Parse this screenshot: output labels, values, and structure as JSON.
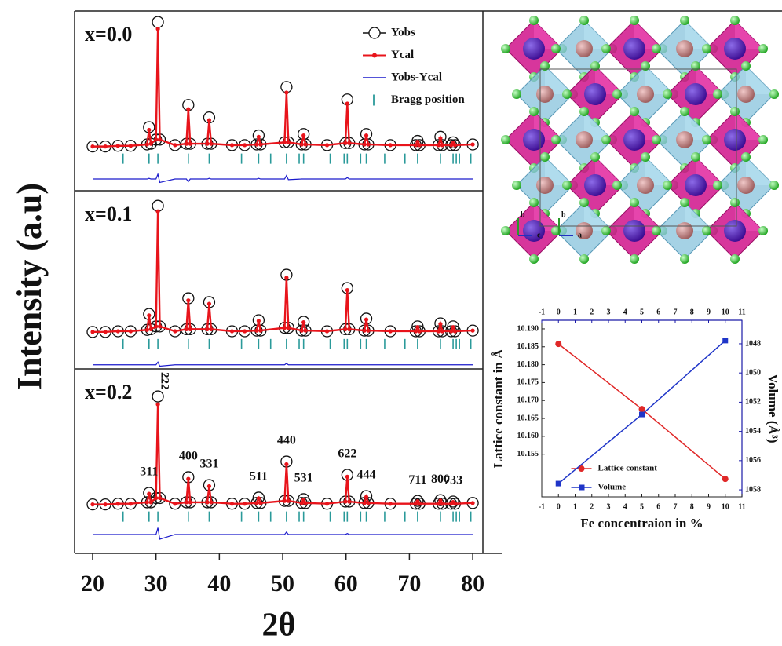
{
  "chart_data": [
    {
      "type": "line",
      "xlabel": "2θ",
      "ylabel": "Intensity (a.u)",
      "xlim": [
        17.15,
        81.6
      ],
      "xticks": [
        20,
        30,
        40,
        50,
        60,
        70,
        80
      ],
      "panels": [
        {
          "label": "x=0.0",
          "ylim": [
            -25,
            105
          ],
          "legend": "upper right",
          "x": [
            20,
            22,
            24,
            26,
            28.6,
            28.9,
            29.2,
            30.0,
            30.3,
            30.6,
            33,
            34.8,
            35.1,
            35.4,
            38.1,
            38.4,
            38.7,
            42,
            44,
            45.9,
            46.2,
            46.5,
            50.3,
            50.6,
            50.9,
            53.0,
            53.3,
            53.6,
            57,
            59.9,
            60.2,
            60.5,
            62.9,
            63.2,
            63.5,
            67,
            71.0,
            71.3,
            71.6,
            74.6,
            74.9,
            75.2,
            76.6,
            76.9,
            77.2,
            80
          ],
          "series": [
            {
              "name": "Yobs",
              "color": "#111111",
              "marker": "circle",
              "values": [
                7,
                7,
                7.5,
                7.5,
                8.5,
                21,
                9,
                12,
                97,
                12,
                8,
                9,
                37,
                9,
                9,
                28,
                9,
                8,
                8,
                8.5,
                15,
                8.5,
                10,
                50,
                10,
                8.5,
                16,
                8.5,
                8,
                9.5,
                41,
                9.5,
                8.5,
                16,
                8.5,
                8,
                8,
                11,
                8,
                8,
                14,
                8,
                8,
                10,
                8,
                8.5
              ]
            },
            {
              "name": "Ycal",
              "color": "#e8141b",
              "marker": "dot",
              "values": [
                7,
                7,
                7.5,
                7.5,
                8.5,
                19,
                9,
                12,
                92,
                12,
                8,
                9,
                34,
                9,
                9,
                26,
                9,
                8,
                8,
                8.5,
                14,
                8.5,
                10,
                46,
                10,
                8.5,
                15,
                8.5,
                8,
                9.5,
                38,
                9.5,
                8.5,
                15,
                8.5,
                8,
                8,
                10.5,
                8,
                8,
                13,
                8,
                8,
                9.5,
                8,
                8.5
              ]
            },
            {
              "name": "Yobs-Ycal",
              "color": "#1a1acc",
              "marker": "line",
              "values": [
                -16.5,
                -16.5,
                -16.5,
                -16.5,
                -16.5,
                -16,
                -16.5,
                -16.5,
                -13,
                -19,
                -16.5,
                -16.5,
                -18.5,
                -16.5,
                -16.5,
                -16,
                -16.5,
                -16.5,
                -16.5,
                -16.5,
                -16,
                -16.5,
                -16.5,
                -14,
                -17,
                -16.5,
                -16.5,
                -16.5,
                -16.5,
                -16.5,
                -15.5,
                -16.5,
                -16.5,
                -16.5,
                -16.5,
                -16.5,
                -16.5,
                -16.5,
                -16.5,
                -16.5,
                -16.5,
                -16.5,
                -16.5,
                -16.5,
                -16.5,
                -16.5
              ]
            },
            {
              "name": "Bragg position",
              "color": "#2a9a9a",
              "marker": "tick",
              "x": [
                24.8,
                28.9,
                30.3,
                35.1,
                38.4,
                43.5,
                46.2,
                48.1,
                50.6,
                52.6,
                53.3,
                57.5,
                59.7,
                60.2,
                62.3,
                63.2,
                66.1,
                69.3,
                71.3,
                74.9,
                76.9,
                77.4,
                77.9,
                79.7
              ]
            }
          ]
        },
        {
          "label": "x=0.1",
          "ylim": [
            -25,
            105
          ],
          "x": [
            20,
            22,
            24,
            26,
            28.6,
            28.9,
            29.2,
            30.0,
            30.3,
            30.6,
            33,
            34.8,
            35.1,
            35.4,
            38.1,
            38.4,
            38.7,
            42,
            44,
            45.9,
            46.2,
            46.5,
            50.3,
            50.6,
            50.9,
            53.0,
            53.3,
            53.6,
            57,
            59.9,
            60.2,
            60.5,
            62.9,
            63.2,
            63.5,
            67,
            71.0,
            71.3,
            71.6,
            74.6,
            74.9,
            75.2,
            76.6,
            76.9,
            77.2,
            80
          ],
          "series": [
            {
              "color": "#111111",
              "marker": "circle",
              "values": [
                2,
                2,
                2.5,
                2.5,
                3.5,
                15,
                4,
                6,
                94,
                6,
                2.5,
                4,
                26.5,
                4,
                4,
                23.7,
                4,
                2.5,
                2.5,
                3,
                10.5,
                3,
                5,
                43.7,
                5,
                3,
                9.4,
                3,
                2.5,
                4,
                34,
                4,
                3,
                11.7,
                3,
                2.5,
                2.5,
                6,
                2.5,
                2.5,
                8.2,
                2.5,
                2.5,
                6,
                2.5,
                3
              ]
            },
            {
              "color": "#e8141b",
              "marker": "dot",
              "values": [
                2,
                2,
                2.5,
                2.5,
                3.5,
                14,
                4,
                6,
                90,
                6,
                2.5,
                4,
                25,
                4,
                4,
                22.5,
                4,
                2.5,
                2.5,
                3,
                10,
                3,
                5,
                41.5,
                5,
                3,
                9,
                3,
                2.5,
                4,
                32.5,
                4,
                3,
                11,
                3,
                2.5,
                2.5,
                5.5,
                2.5,
                2.5,
                7.8,
                2.5,
                2.5,
                5.5,
                2.5,
                3
              ]
            },
            {
              "color": "#1a1acc",
              "marker": "line",
              "values": [
                -22,
                -22,
                -22,
                -22,
                -22,
                -22,
                -22,
                -22,
                -20,
                -23,
                -22,
                -22,
                -22,
                -22,
                -22,
                -22,
                -22,
                -22,
                -22,
                -22,
                -22,
                -22,
                -22,
                -21,
                -22,
                -22,
                -22,
                -22,
                -22,
                -22,
                -22,
                -22,
                -22,
                -22,
                -22,
                -22,
                -22,
                -22,
                -22,
                -22,
                -22,
                -22,
                -22,
                -22,
                -22,
                -22
              ]
            },
            {
              "color": "#2a9a9a",
              "marker": "tick",
              "x": [
                24.8,
                28.9,
                30.3,
                35.1,
                38.4,
                43.5,
                46.2,
                48.1,
                50.6,
                52.6,
                53.3,
                57.5,
                59.7,
                60.2,
                62.3,
                63.2,
                66.1,
                69.3,
                71.3,
                74.9,
                76.9,
                77.4,
                77.9,
                79.7
              ]
            }
          ]
        },
        {
          "label": "x=0.2",
          "ylim": [
            -25,
            105
          ],
          "x": [
            20,
            22,
            24,
            26,
            28.6,
            28.9,
            29.2,
            30.0,
            30.3,
            30.6,
            33,
            34.8,
            35.1,
            35.4,
            38.1,
            38.4,
            38.7,
            42,
            44,
            45.9,
            46.2,
            46.5,
            50.3,
            50.6,
            50.9,
            53.0,
            53.3,
            53.6,
            57,
            59.9,
            60.2,
            60.5,
            62.9,
            63.2,
            63.5,
            67,
            71.0,
            71.3,
            71.6,
            74.6,
            74.9,
            75.2,
            76.6,
            76.9,
            77.2,
            80
          ],
          "series": [
            {
              "color": "#111111",
              "marker": "circle",
              "values": [
                9.5,
                9.5,
                10,
                10,
                11,
                17.6,
                11,
                14,
                85.6,
                14,
                10,
                11,
                28.7,
                11,
                11,
                23.1,
                11,
                10,
                10,
                10.5,
                14.3,
                10.5,
                12,
                39.7,
                12,
                10.5,
                13.2,
                10.5,
                10,
                11.5,
                30.3,
                11.5,
                10.5,
                15.4,
                10.5,
                10,
                10,
                12,
                10,
                10,
                12.5,
                10,
                10,
                11.5,
                10,
                10.5
              ]
            },
            {
              "color": "#e8141b",
              "marker": "dot",
              "values": [
                9.5,
                9.5,
                10,
                10,
                11,
                17,
                11,
                14,
                80,
                14,
                10,
                11,
                27.5,
                11,
                11,
                22.3,
                11,
                10,
                10,
                10.5,
                13.8,
                10.5,
                12,
                37.8,
                12,
                10.5,
                12.8,
                10.5,
                10,
                11.5,
                29,
                11.5,
                10.5,
                14.8,
                10.5,
                10,
                10,
                11.7,
                10,
                10,
                12.2,
                10,
                10,
                11.2,
                10,
                10.5
              ]
            },
            {
              "color": "#1a1acc",
              "marker": "line",
              "values": [
                -11.7,
                -11.7,
                -11.7,
                -11.7,
                -11.7,
                -11.7,
                -11.7,
                -11.7,
                -7,
                -15,
                -11.7,
                -11.7,
                -11.7,
                -11.7,
                -11.7,
                -11.7,
                -11.7,
                -11.7,
                -11.7,
                -11.7,
                -11.7,
                -11.7,
                -11.7,
                -10,
                -11.7,
                -11.7,
                -11.7,
                -11.7,
                -11.7,
                -11.7,
                -11,
                -11.7,
                -11.7,
                -11.7,
                -11.7,
                -11.7,
                -11.7,
                -11.7,
                -11.7,
                -11.7,
                -11.7,
                -11.7,
                -11.7,
                -11.7,
                -11.7,
                -11.7
              ]
            },
            {
              "color": "#2a9a9a",
              "marker": "tick",
              "x": [
                24.8,
                28.9,
                30.3,
                35.1,
                38.4,
                43.5,
                46.2,
                48.1,
                50.6,
                52.6,
                53.3,
                57.5,
                59.7,
                60.2,
                62.3,
                63.2,
                66.1,
                69.3,
                71.3,
                74.9,
                76.9,
                77.4,
                77.9,
                79.7
              ]
            }
          ],
          "annotations": [
            {
              "text": "222",
              "x": 30.3
            },
            {
              "text": "311",
              "x": 28.9
            },
            {
              "text": "400",
              "x": 35.1
            },
            {
              "text": "331",
              "x": 38.4
            },
            {
              "text": "511",
              "x": 46.2
            },
            {
              "text": "440",
              "x": 50.6
            },
            {
              "text": "531",
              "x": 53.3
            },
            {
              "text": "622",
              "x": 60.2
            },
            {
              "text": "444",
              "x": 63.2
            },
            {
              "text": "711",
              "x": 71.3
            },
            {
              "text": "800",
              "x": 74.9
            },
            {
              "text": "733",
              "x": 76.9
            }
          ]
        }
      ]
    },
    {
      "type": "line",
      "xlabel": "Fe concentraion in %",
      "ylabel": "Lattice constant in Å",
      "y2label": "Volume (Å³)",
      "xlim": [
        -1,
        11
      ],
      "xticks": [
        -1,
        0,
        1,
        2,
        3,
        4,
        5,
        6,
        7,
        8,
        9,
        10,
        11
      ],
      "ylim": [
        10.1431,
        10.1924
      ],
      "yticks": [
        10.155,
        {
          "value": 10.16,
          "label": "10.160"
        },
        10.165,
        {
          "value": 10.17,
          "label": "10.170"
        },
        10.175,
        {
          "value": 10.18,
          "label": "10.180"
        },
        10.185,
        {
          "value": 10.19,
          "label": "10.190"
        }
      ],
      "y2lim": [
        1058.48,
        1046.39
      ],
      "y2ticks": [
        1048,
        1050,
        1052,
        1054,
        1056,
        1058
      ],
      "axis2_color": "#1a1aa8",
      "x": [
        0,
        5,
        10
      ],
      "series": [
        {
          "name": "Lattice constant",
          "color": "#e02828",
          "marker": "circle",
          "values": [
            10.1858,
            10.1676,
            10.1481
          ]
        },
        {
          "name": "Volume",
          "color": "#1f35c8",
          "marker": "square",
          "axis": "y2",
          "values": [
            1057.57,
            1052.84,
            1047.78
          ]
        }
      ],
      "legend": "lower center"
    }
  ],
  "crystal": {
    "axis_labels": [
      "b",
      "c",
      "b",
      "a"
    ]
  }
}
